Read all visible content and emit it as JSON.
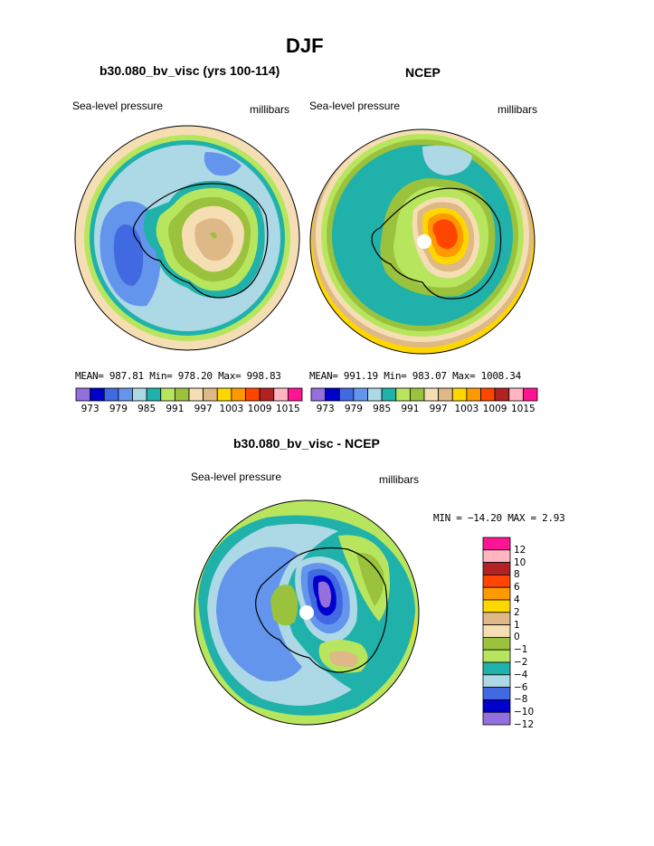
{
  "page": {
    "title": "DJF"
  },
  "panels": [
    {
      "heading": "b30.080_bv_visc (yrs 100-114)",
      "left_label": "Sea-level pressure",
      "right_label": "millibars",
      "stats": "MEAN= 987.81  Min= 978.20  Max= 998.83",
      "colorbar_ticks": [
        "973",
        "979",
        "985",
        "991",
        "997",
        "1003",
        "1009",
        "1015"
      ]
    },
    {
      "heading": "NCEP",
      "left_label": "Sea-level pressure",
      "right_label": "millibars",
      "stats": "MEAN= 991.19  Min= 983.07  Max= 1008.34",
      "colorbar_ticks": [
        "973",
        "979",
        "985",
        "991",
        "997",
        "1003",
        "1009",
        "1015"
      ]
    },
    {
      "heading": "b30.080_bv_visc - NCEP",
      "left_label": "Sea-level pressure",
      "right_label": "millibars",
      "stats": "MIN = −14.20 MAX =   2.93",
      "colorbar_ticks": [
        "12",
        "10",
        "8",
        "6",
        "4",
        "2",
        "1",
        "0",
        "−1",
        "−2",
        "−4",
        "−6",
        "−8",
        "−10",
        "−12"
      ]
    }
  ],
  "colors": {
    "abs_scale": [
      "#9370db",
      "#0000cd",
      "#4169e1",
      "#6495ed",
      "#add8e6",
      "#20b2aa",
      "#b7e65e",
      "#9ac23c",
      "#f5deb3",
      "#deb887",
      "#ffd700",
      "#ff9900",
      "#ff4500",
      "#b22222",
      "#ffb6c1",
      "#ff1493"
    ],
    "diff_scale": [
      "#ff1493",
      "#ffb6c1",
      "#b22222",
      "#ff4500",
      "#ff9900",
      "#ffd700",
      "#deb887",
      "#f5deb3",
      "#9ac23c",
      "#b7e65e",
      "#20b2aa",
      "#add8e6",
      "#4169e1",
      "#0000cd",
      "#9370db"
    ],
    "coast": "#000000",
    "pole_marker": "#ffffff"
  }
}
